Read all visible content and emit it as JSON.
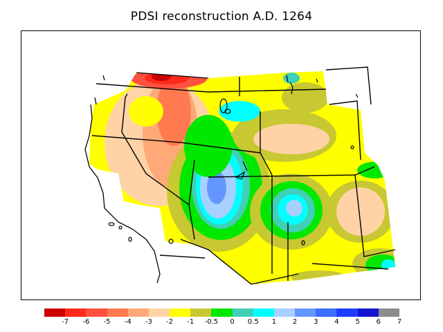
{
  "title": "PDSI reconstruction A.D. 1264",
  "legend": {
    "colors": [
      "#cc0000",
      "#ff2a1a",
      "#ff5040",
      "#ff7a4e",
      "#ffa878",
      "#ffd3a6",
      "#ffff00",
      "#c8c832",
      "#00e800",
      "#40d0b8",
      "#00ffff",
      "#a8d0ff",
      "#6496ff",
      "#3a6eff",
      "#1e3cff",
      "#1414d2",
      "#8c8c8c"
    ],
    "tick_labels": [
      "-7",
      "-6",
      "-5",
      "-4",
      "-3",
      "-2",
      "-1",
      "-0.5",
      "0",
      "0.5",
      "1",
      "2",
      "3",
      "4",
      "5",
      "6",
      "7"
    ]
  }
}
